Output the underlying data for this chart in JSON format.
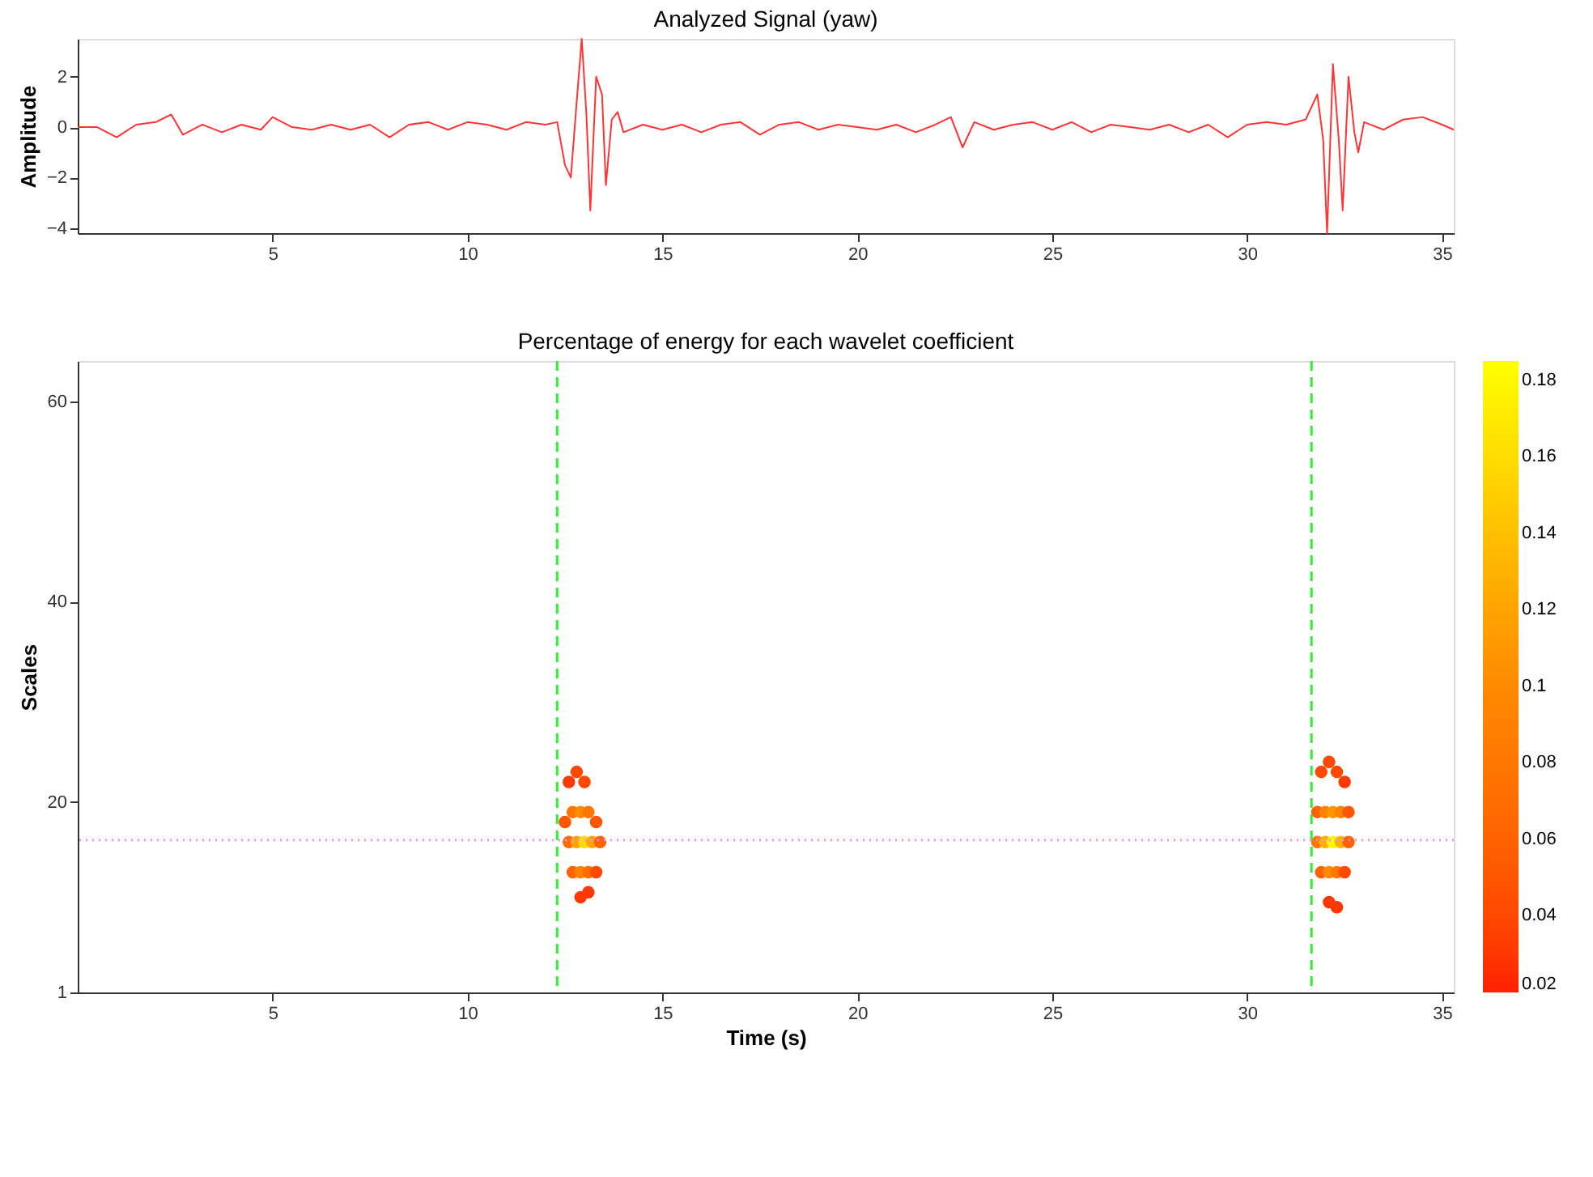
{
  "chart_data": [
    {
      "type": "line",
      "title": "Analyzed Signal (yaw)",
      "ylabel": "Amplitude",
      "xlim": [
        0,
        35.3
      ],
      "xticks": [
        5,
        10,
        15,
        20,
        25,
        30,
        35
      ],
      "ylim": [
        -4.2,
        3.5
      ],
      "yticks": [
        -4,
        -2,
        0,
        2
      ],
      "grid": false,
      "marker": "none",
      "line_style": "solid",
      "series": [
        {
          "color": "#ff3333",
          "x": [
            0,
            0.5,
            1,
            1.5,
            2,
            2.4,
            2.7,
            3.2,
            3.7,
            4.2,
            4.7,
            5.0,
            5.5,
            6,
            6.5,
            7,
            7.5,
            8,
            8.5,
            9,
            9.5,
            10,
            10.5,
            11,
            11.5,
            12,
            12.3,
            12.5,
            12.65,
            12.8,
            12.93,
            13.05,
            13.15,
            13.3,
            13.45,
            13.55,
            13.7,
            13.85,
            14,
            14.5,
            15,
            15.5,
            16,
            16.5,
            17,
            17.5,
            18,
            18.5,
            19,
            19.5,
            20,
            20.5,
            21,
            21.5,
            22,
            22.4,
            22.7,
            23,
            23.5,
            24,
            24.5,
            25,
            25.5,
            26,
            26.5,
            27,
            27.5,
            28,
            28.5,
            29,
            29.5,
            30,
            30.5,
            31,
            31.5,
            31.8,
            31.95,
            32.05,
            32.2,
            32.35,
            32.45,
            32.6,
            32.75,
            32.85,
            33,
            33.5,
            34,
            34.5,
            35,
            35.3
          ],
          "values": [
            0,
            0,
            -0.4,
            0.1,
            0.2,
            0.5,
            -0.3,
            0.1,
            -0.2,
            0.1,
            -0.1,
            0.4,
            0,
            -0.1,
            0.1,
            -0.1,
            0.1,
            -0.4,
            0.1,
            0.2,
            -0.1,
            0.2,
            0.1,
            -0.1,
            0.2,
            0.1,
            0.2,
            -1.5,
            -2.0,
            1.0,
            3.5,
            0.5,
            -3.3,
            2.0,
            1.3,
            -2.3,
            0.3,
            0.6,
            -0.2,
            0.1,
            -0.1,
            0.1,
            -0.2,
            0.1,
            0.2,
            -0.3,
            0.1,
            0.2,
            -0.1,
            0.1,
            0,
            -0.1,
            0.1,
            -0.2,
            0.1,
            0.4,
            -0.8,
            0.2,
            -0.1,
            0.1,
            0.2,
            -0.1,
            0.2,
            -0.2,
            0.1,
            0,
            -0.1,
            0.1,
            -0.2,
            0.1,
            -0.4,
            0.1,
            0.2,
            0.1,
            0.3,
            1.3,
            -0.5,
            -4.2,
            2.5,
            -0.5,
            -3.3,
            2.0,
            -0.2,
            -1.0,
            0.2,
            -0.1,
            0.3,
            0.4,
            0.1,
            -0.1
          ]
        }
      ]
    },
    {
      "type": "scatter",
      "title": "Percentage of energy for each wavelet coefficient",
      "xlabel": "Time (s)",
      "ylabel": "Scales",
      "xlim": [
        0,
        35.3
      ],
      "xticks": [
        5,
        10,
        15,
        20,
        25,
        30,
        35
      ],
      "ylim": [
        1,
        64
      ],
      "yticks": [
        1,
        20,
        40,
        60
      ],
      "grid": false,
      "marker": "circle",
      "clim": [
        0.02,
        0.185
      ],
      "cticks": [
        0.02,
        0.04,
        0.06,
        0.08,
        0.1,
        0.12,
        0.14,
        0.16,
        0.18
      ],
      "ref_lines": [
        {
          "axis": "x",
          "value": 12.3,
          "color": "#33ee33",
          "line_style": "dashed"
        },
        {
          "axis": "x",
          "value": 31.65,
          "color": "#33ee33",
          "line_style": "dashed"
        },
        {
          "axis": "y",
          "value": 16.2,
          "color": "#ff88ff",
          "line_style": "dotted"
        }
      ],
      "series": [
        {
          "x": [
            12.6,
            12.8,
            13.0,
            12.5,
            12.7,
            12.9,
            13.1,
            13.3,
            12.6,
            12.8,
            13.0,
            13.2,
            13.4,
            12.7,
            12.9,
            13.1,
            13.3,
            12.9,
            13.1,
            31.9,
            32.1,
            32.3,
            32.5,
            31.8,
            32.0,
            32.2,
            32.4,
            32.6,
            31.8,
            32.0,
            32.2,
            32.4,
            32.6,
            31.9,
            32.1,
            32.3,
            32.5,
            32.1,
            32.3
          ],
          "values": [
            22,
            23,
            22,
            18,
            19,
            19,
            19,
            18,
            16,
            16,
            16,
            16,
            16,
            13,
            13,
            13,
            13,
            10.5,
            11,
            23,
            24,
            23,
            22,
            19,
            19,
            19,
            19,
            19,
            16,
            16,
            16,
            16,
            16,
            13,
            13,
            13,
            13,
            10,
            9.5
          ],
          "cvalues": [
            0.03,
            0.04,
            0.04,
            0.05,
            0.08,
            0.1,
            0.08,
            0.05,
            0.07,
            0.12,
            0.16,
            0.12,
            0.06,
            0.06,
            0.09,
            0.07,
            0.04,
            0.03,
            0.03,
            0.04,
            0.04,
            0.04,
            0.03,
            0.06,
            0.09,
            0.11,
            0.09,
            0.05,
            0.08,
            0.13,
            0.18,
            0.13,
            0.06,
            0.06,
            0.1,
            0.08,
            0.04,
            0.03,
            0.03
          ]
        }
      ]
    }
  ]
}
